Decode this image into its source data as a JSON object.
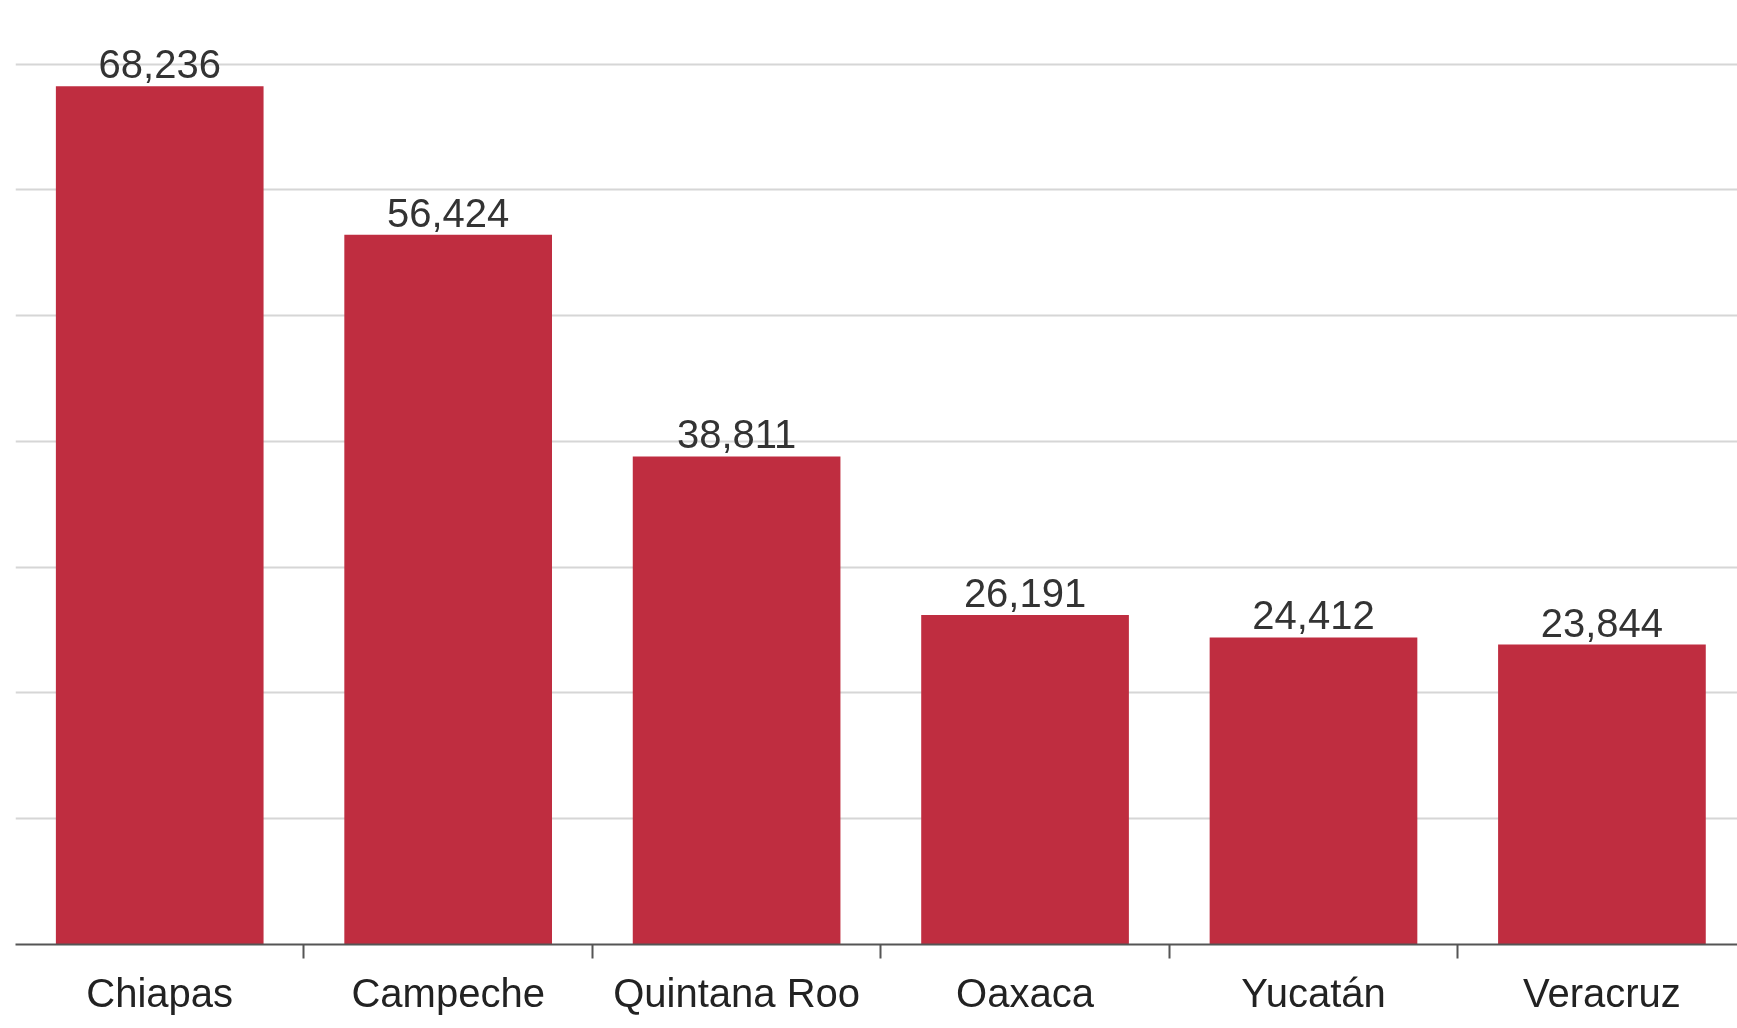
{
  "chart_data": {
    "type": "bar",
    "categories": [
      "Chiapas",
      "Campeche",
      "Quintana Roo",
      "Oaxaca",
      "Yucatán",
      "Veracruz"
    ],
    "values": [
      68236,
      56424,
      38811,
      26191,
      24412,
      23844
    ],
    "value_labels": [
      "68,236",
      "56,424",
      "38,811",
      "26,191",
      "24,412",
      "23,844"
    ],
    "color": "#bf2d40",
    "grid": "y",
    "tick_labels": "x"
  }
}
